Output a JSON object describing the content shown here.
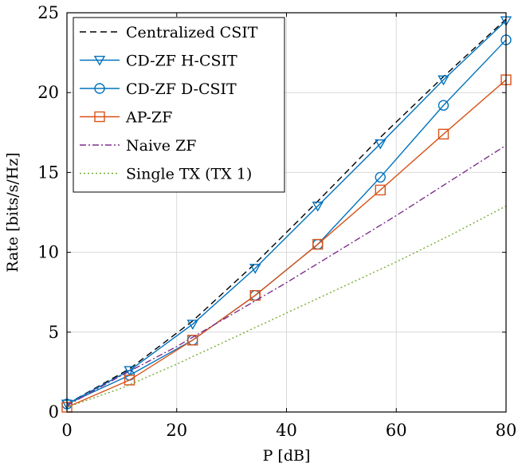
{
  "chart_data": {
    "type": "line",
    "xlabel": "P [dB]",
    "ylabel": "Rate [bits/s/Hz]",
    "xlim": [
      0,
      80
    ],
    "ylim": [
      0,
      25
    ],
    "xticks": [
      0,
      20,
      40,
      60,
      80
    ],
    "yticks": [
      0,
      5,
      10,
      15,
      20,
      25
    ],
    "grid": true,
    "legend_position": "top-left",
    "series": [
      {
        "name": "Centralized CSIT",
        "color": "#000000",
        "dash": "dashed",
        "marker": "none",
        "x": [
          0,
          11.4,
          22.9,
          34.3,
          45.7,
          57.1,
          68.6,
          80
        ],
        "y": [
          0.5,
          2.7,
          5.7,
          9.3,
          13.2,
          17.2,
          21.0,
          24.6
        ]
      },
      {
        "name": "CD-ZF H-CSIT",
        "color": "#0072BD",
        "dash": "solid",
        "marker": "triangle-down",
        "x": [
          0,
          11.4,
          22.9,
          34.3,
          45.7,
          57.1,
          68.6,
          80
        ],
        "y": [
          0.5,
          2.6,
          5.5,
          9.0,
          12.9,
          16.8,
          20.8,
          24.5
        ]
      },
      {
        "name": "CD-ZF D-CSIT",
        "color": "#0072BD",
        "dash": "solid",
        "marker": "circle",
        "x": [
          0,
          11.4,
          22.9,
          34.3,
          45.7,
          57.1,
          68.6,
          80
        ],
        "y": [
          0.5,
          2.3,
          4.5,
          7.3,
          10.5,
          14.7,
          19.2,
          23.3
        ]
      },
      {
        "name": "AP-ZF",
        "color": "#D95319",
        "dash": "solid",
        "marker": "square",
        "x": [
          0,
          11.4,
          22.9,
          34.3,
          45.7,
          57.1,
          68.6,
          80
        ],
        "y": [
          0.3,
          2.0,
          4.5,
          7.3,
          10.5,
          13.9,
          17.4,
          20.8
        ]
      },
      {
        "name": "Naive ZF",
        "color": "#7E2F8E",
        "dash": "dashdot",
        "marker": "none",
        "x": [
          0,
          10,
          20,
          30,
          40,
          50,
          60,
          70,
          80
        ],
        "y": [
          0.4,
          2.3,
          4.1,
          6.1,
          8.1,
          10.2,
          12.3,
          14.5,
          16.7
        ]
      },
      {
        "name": "Single TX (TX 1)",
        "color": "#77AC30",
        "dash": "dotted",
        "marker": "none",
        "x": [
          0,
          10,
          20,
          30,
          40,
          50,
          60,
          70,
          80
        ],
        "y": [
          0.3,
          1.5,
          3.0,
          4.6,
          6.2,
          7.8,
          9.4,
          11.1,
          12.9
        ]
      }
    ]
  }
}
